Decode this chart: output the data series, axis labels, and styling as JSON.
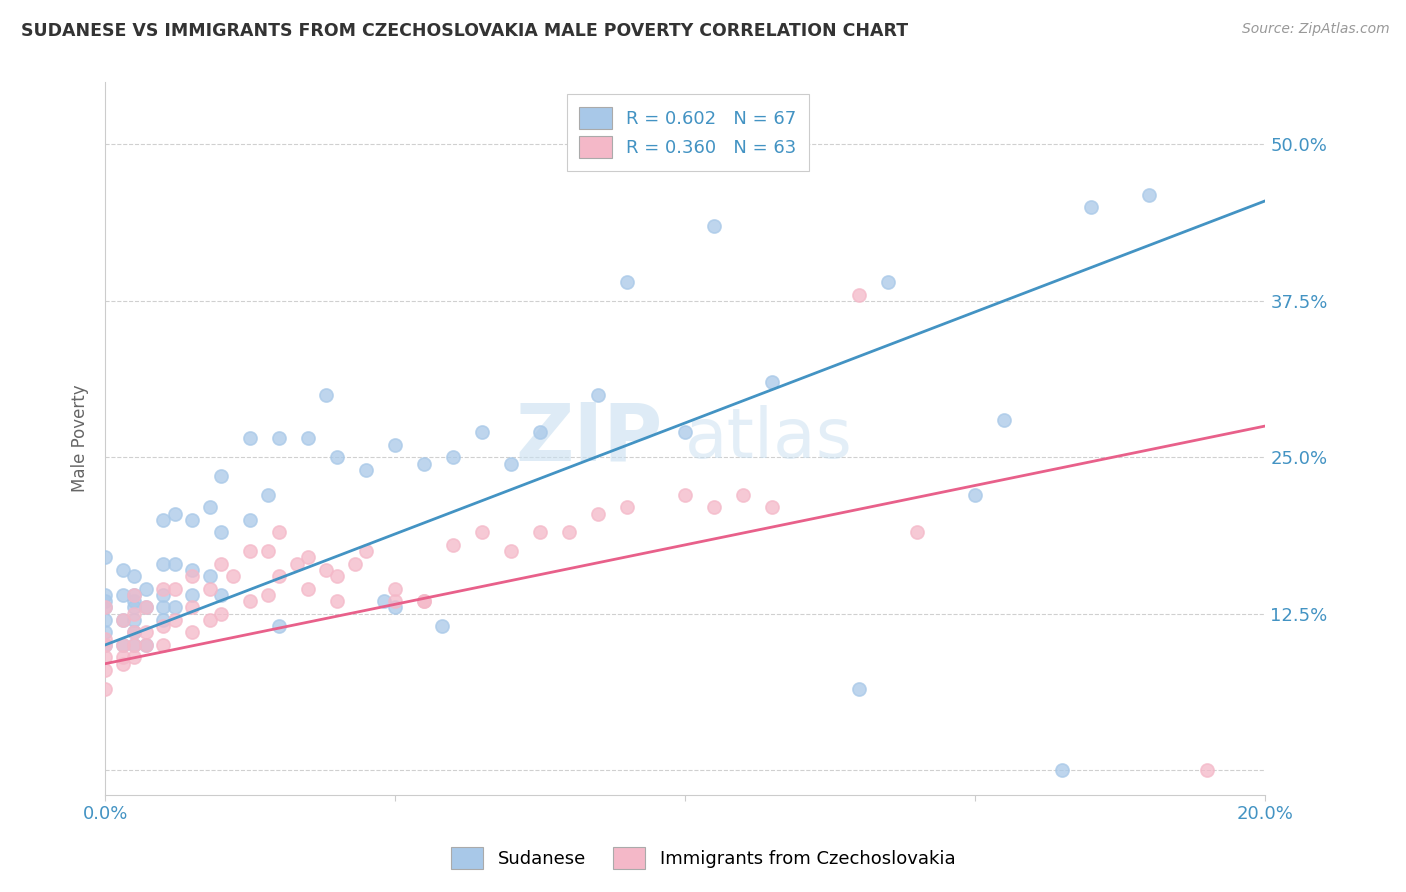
{
  "title": "SUDANESE VS IMMIGRANTS FROM CZECHOSLOVAKIA MALE POVERTY CORRELATION CHART",
  "source": "Source: ZipAtlas.com",
  "ylabel": "Male Poverty",
  "xlim": [
    0.0,
    0.2
  ],
  "ylim": [
    -0.02,
    0.55
  ],
  "yticks": [
    0.0,
    0.125,
    0.25,
    0.375,
    0.5
  ],
  "ytick_labels": [
    "",
    "12.5%",
    "25.0%",
    "37.5%",
    "50.0%"
  ],
  "xticks": [
    0.0,
    0.05,
    0.1,
    0.15,
    0.2
  ],
  "xtick_labels": [
    "0.0%",
    "",
    "",
    "",
    "20.0%"
  ],
  "legend_entry1": "R = 0.602   N = 67",
  "legend_entry2": "R = 0.360   N = 63",
  "legend_label1": "Sudanese",
  "legend_label2": "Immigrants from Czechoslovakia",
  "color_blue": "#a8c8e8",
  "color_blue_fill": "#a8c8e8",
  "color_pink": "#f4b8c8",
  "color_blue_line": "#4393c3",
  "color_pink_line": "#e8608a",
  "watermark_zip": "ZIP",
  "watermark_atlas": "atlas",
  "background_color": "#ffffff",
  "grid_color": "#d0d0d0",
  "blue_line_y0": 0.1,
  "blue_line_y1": 0.455,
  "pink_line_y0": 0.085,
  "pink_line_y1": 0.275,
  "sudanese_x": [
    0.0,
    0.0,
    0.0,
    0.0,
    0.0,
    0.0,
    0.0,
    0.003,
    0.003,
    0.003,
    0.003,
    0.005,
    0.005,
    0.005,
    0.005,
    0.005,
    0.005,
    0.005,
    0.007,
    0.007,
    0.007,
    0.01,
    0.01,
    0.01,
    0.01,
    0.01,
    0.012,
    0.012,
    0.012,
    0.015,
    0.015,
    0.015,
    0.018,
    0.018,
    0.02,
    0.02,
    0.02,
    0.025,
    0.025,
    0.028,
    0.03,
    0.03,
    0.035,
    0.038,
    0.04,
    0.045,
    0.048,
    0.05,
    0.05,
    0.055,
    0.058,
    0.06,
    0.065,
    0.07,
    0.075,
    0.085,
    0.09,
    0.1,
    0.105,
    0.115,
    0.13,
    0.135,
    0.15,
    0.155,
    0.165,
    0.17,
    0.18
  ],
  "sudanese_y": [
    0.1,
    0.11,
    0.12,
    0.13,
    0.135,
    0.14,
    0.17,
    0.1,
    0.12,
    0.14,
    0.16,
    0.1,
    0.11,
    0.12,
    0.13,
    0.135,
    0.14,
    0.155,
    0.1,
    0.13,
    0.145,
    0.12,
    0.13,
    0.14,
    0.165,
    0.2,
    0.13,
    0.165,
    0.205,
    0.14,
    0.16,
    0.2,
    0.155,
    0.21,
    0.14,
    0.19,
    0.235,
    0.2,
    0.265,
    0.22,
    0.115,
    0.265,
    0.265,
    0.3,
    0.25,
    0.24,
    0.135,
    0.13,
    0.26,
    0.245,
    0.115,
    0.25,
    0.27,
    0.245,
    0.27,
    0.3,
    0.39,
    0.27,
    0.435,
    0.31,
    0.065,
    0.39,
    0.22,
    0.28,
    0.0,
    0.45,
    0.46
  ],
  "czech_x": [
    0.0,
    0.0,
    0.0,
    0.0,
    0.0,
    0.0,
    0.003,
    0.003,
    0.003,
    0.003,
    0.005,
    0.005,
    0.005,
    0.005,
    0.005,
    0.007,
    0.007,
    0.007,
    0.01,
    0.01,
    0.01,
    0.012,
    0.012,
    0.015,
    0.015,
    0.015,
    0.018,
    0.018,
    0.02,
    0.02,
    0.022,
    0.025,
    0.025,
    0.028,
    0.028,
    0.03,
    0.03,
    0.033,
    0.035,
    0.035,
    0.038,
    0.04,
    0.04,
    0.043,
    0.045,
    0.05,
    0.05,
    0.055,
    0.055,
    0.06,
    0.065,
    0.07,
    0.075,
    0.08,
    0.085,
    0.09,
    0.1,
    0.105,
    0.11,
    0.115,
    0.13,
    0.14,
    0.19
  ],
  "czech_y": [
    0.065,
    0.08,
    0.09,
    0.1,
    0.105,
    0.13,
    0.085,
    0.09,
    0.1,
    0.12,
    0.09,
    0.1,
    0.11,
    0.125,
    0.14,
    0.1,
    0.11,
    0.13,
    0.1,
    0.115,
    0.145,
    0.12,
    0.145,
    0.11,
    0.13,
    0.155,
    0.12,
    0.145,
    0.125,
    0.165,
    0.155,
    0.135,
    0.175,
    0.14,
    0.175,
    0.155,
    0.19,
    0.165,
    0.145,
    0.17,
    0.16,
    0.135,
    0.155,
    0.165,
    0.175,
    0.135,
    0.145,
    0.135,
    0.135,
    0.18,
    0.19,
    0.175,
    0.19,
    0.19,
    0.205,
    0.21,
    0.22,
    0.21,
    0.22,
    0.21,
    0.38,
    0.19,
    0.0
  ]
}
